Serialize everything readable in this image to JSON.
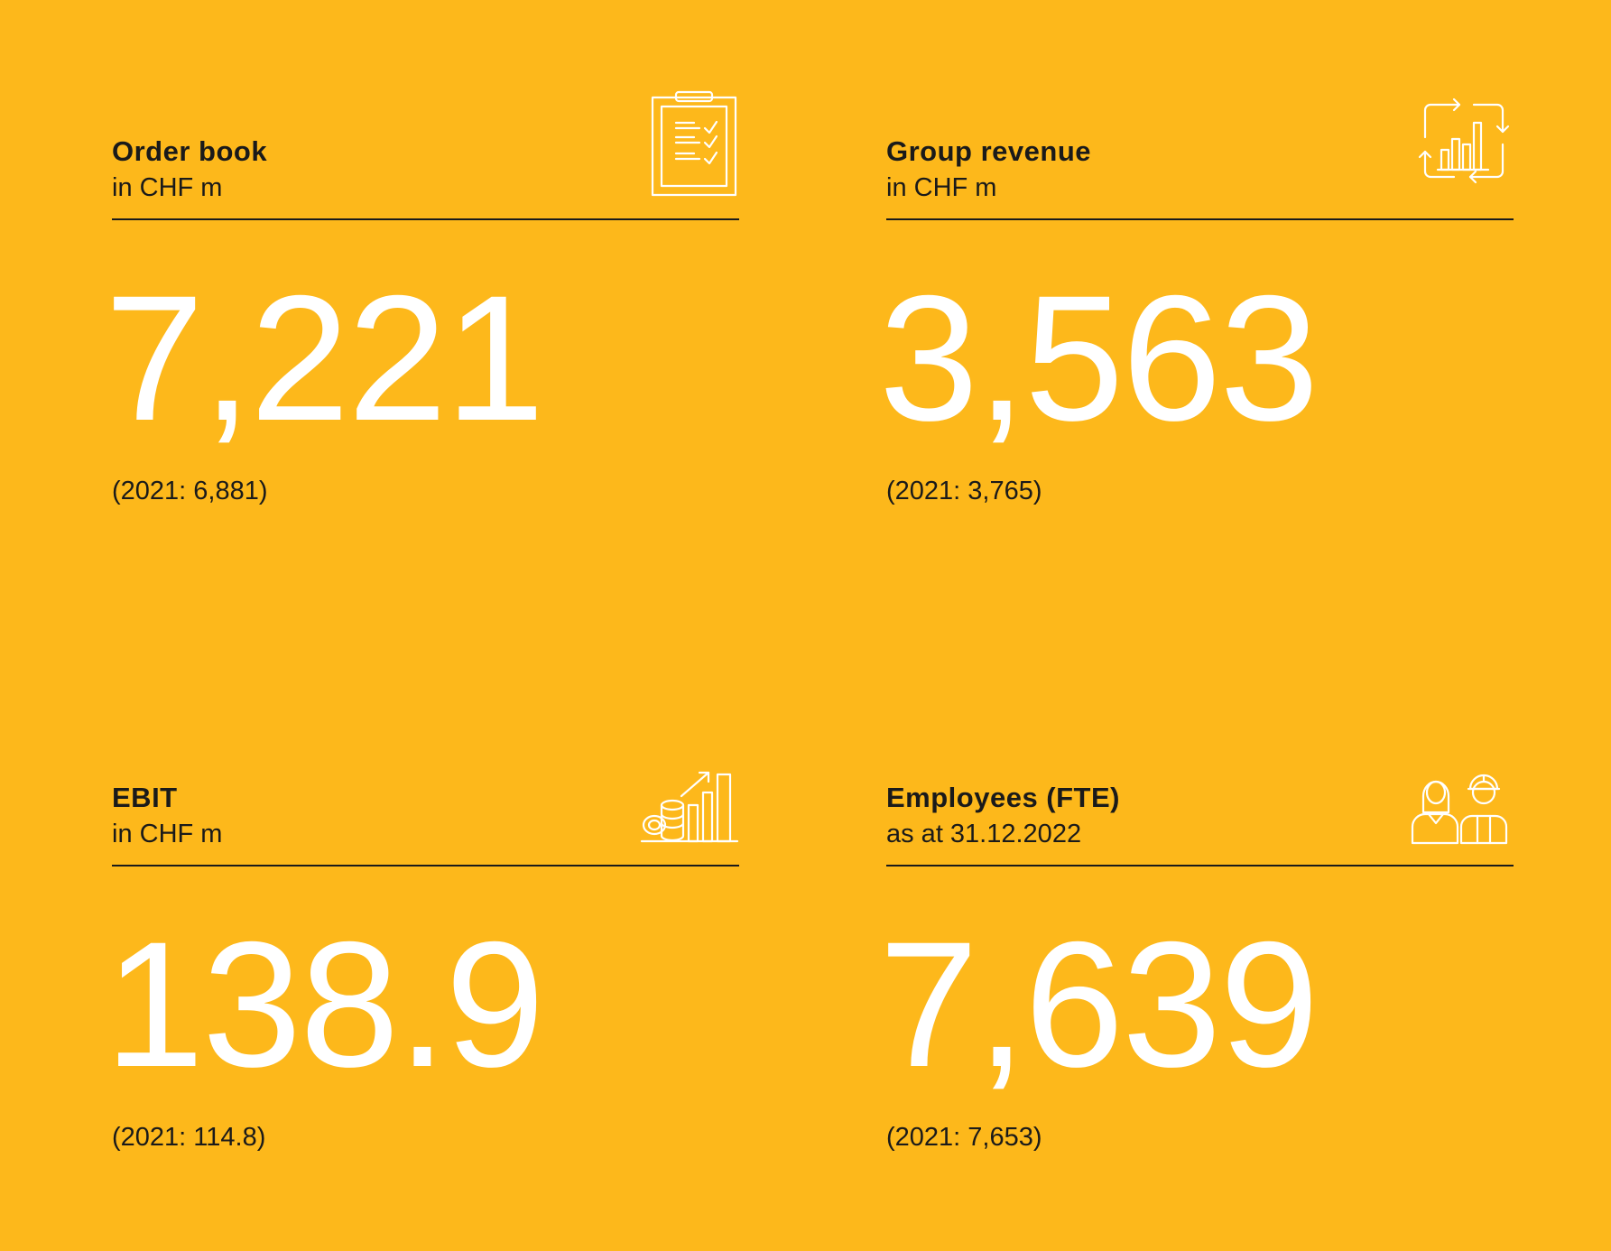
{
  "kpis": {
    "order_book": {
      "title": "Order book",
      "unit": "in CHF m",
      "value": "7,221",
      "previous": "(2021: 6,881)",
      "icon": "clipboard-checklist-icon"
    },
    "group_revenue": {
      "title": "Group revenue",
      "unit": "in CHF m",
      "value": "3,563",
      "previous": "(2021: 3,765)",
      "icon": "revenue-cycle-chart-icon"
    },
    "ebit": {
      "title": "EBIT",
      "unit": "in CHF m",
      "value": "138.9",
      "previous": "(2021: 114.8)",
      "icon": "coins-growth-chart-icon"
    },
    "employees": {
      "title": "Employees (FTE)",
      "unit": "as at 31.12.2022",
      "value": "7,639",
      "previous": "(2021: 7,653)",
      "icon": "employees-icon"
    }
  },
  "colors": {
    "background": "#fdb81b",
    "value_text": "#ffffff",
    "label_text": "#1a1a1a"
  }
}
